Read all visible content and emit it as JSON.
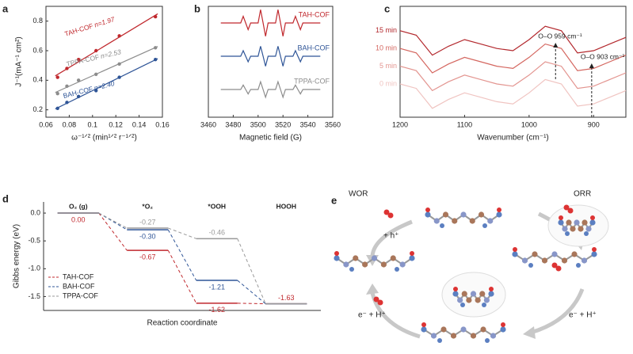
{
  "chart_data": [
    {
      "type": "scatter",
      "label": "a",
      "xlabel": "ω⁻¹ᐟ² (min¹ᐟ² r⁻¹ᐟ²)",
      "ylabel": "J⁻¹(mA⁻¹ cm²)",
      "x": [
        0.07,
        0.078,
        0.088,
        0.103,
        0.123,
        0.154
      ],
      "series": [
        {
          "name": "TAH-COF",
          "annotation": "n=1.97",
          "color": "#c0282d",
          "values": [
            0.42,
            0.48,
            0.54,
            0.6,
            0.7,
            0.83
          ]
        },
        {
          "name": "TPPA-COF",
          "annotation": "n=2.53",
          "color": "#8c8c8c",
          "values": [
            0.31,
            0.36,
            0.4,
            0.44,
            0.51,
            0.62
          ]
        },
        {
          "name": "BAH-COF",
          "annotation": "n=2.40",
          "color": "#2f5597",
          "values": [
            0.21,
            0.25,
            0.29,
            0.33,
            0.42,
            0.54
          ]
        }
      ],
      "xlim": [
        0.06,
        0.16
      ],
      "xticks": [
        0.06,
        0.08,
        0.1,
        0.12,
        0.14,
        0.16
      ],
      "ylim": [
        0.15,
        0.9
      ],
      "yticks": [
        0.2,
        0.4,
        0.6,
        0.8
      ]
    },
    {
      "type": "line",
      "label": "b",
      "xlabel": "Magnetic field (G)",
      "x": [
        3470,
        3472,
        3474,
        3476,
        3478,
        3480,
        3482,
        3484,
        3486,
        3488,
        3490,
        3492,
        3494,
        3496,
        3498,
        3500,
        3502,
        3504,
        3506,
        3508,
        3510,
        3512,
        3514,
        3516,
        3518,
        3520,
        3522,
        3524,
        3526,
        3528,
        3530,
        3532,
        3534,
        3536,
        3538,
        3540,
        3542,
        3544,
        3546,
        3548,
        3550
      ],
      "series": [
        {
          "name": "TAH-COF",
          "color": "#c0282d",
          "values": [
            8.5,
            8.5,
            8.5,
            8.5,
            8.5,
            8.5,
            8.5,
            8.5,
            8.5,
            9.1,
            8.5,
            7.9,
            8.5,
            8.5,
            8.5,
            8.5,
            9.7,
            8.5,
            7.3,
            8.5,
            8.5,
            8.5,
            8.5,
            9.7,
            8.5,
            7.3,
            8.5,
            8.5,
            8.5,
            8.5,
            9.1,
            8.5,
            7.9,
            8.5,
            8.5,
            8.5,
            8.5,
            8.5,
            8.5,
            8.5,
            8.5
          ]
        },
        {
          "name": "BAH-COF",
          "color": "#2f5597",
          "values": [
            5.5,
            5.5,
            5.5,
            5.5,
            5.5,
            5.5,
            5.5,
            5.5,
            5.5,
            6.0,
            5.5,
            5.0,
            5.5,
            5.5,
            5.5,
            5.5,
            6.4,
            5.5,
            4.6,
            5.5,
            5.5,
            5.5,
            5.5,
            6.4,
            5.5,
            4.6,
            5.5,
            5.5,
            5.5,
            5.5,
            6.0,
            5.5,
            5.0,
            5.5,
            5.5,
            5.5,
            5.5,
            5.5,
            5.5,
            5.5,
            5.5
          ]
        },
        {
          "name": "TPPA-COF",
          "color": "#8c8c8c",
          "values": [
            2.5,
            2.5,
            2.5,
            2.5,
            2.5,
            2.5,
            2.5,
            2.5,
            2.5,
            2.9,
            2.5,
            2.1,
            2.5,
            2.5,
            2.5,
            2.5,
            3.2,
            2.5,
            1.8,
            2.5,
            2.5,
            2.5,
            2.5,
            3.2,
            2.5,
            1.8,
            2.5,
            2.5,
            2.5,
            2.5,
            2.9,
            2.5,
            2.1,
            2.5,
            2.5,
            2.5,
            2.5,
            2.5,
            2.5,
            2.5,
            2.5
          ]
        }
      ],
      "xlim": [
        3460,
        3560
      ],
      "xticks": [
        3460,
        3480,
        3500,
        3520,
        3540,
        3560
      ],
      "ylim": [
        0,
        10
      ]
    },
    {
      "type": "line",
      "label": "c",
      "xlabel": "Wavenumber (cm⁻¹)",
      "x": [
        1200,
        1175,
        1150,
        1125,
        1100,
        1075,
        1050,
        1025,
        1000,
        975,
        950,
        925,
        900,
        875,
        850
      ],
      "series": [
        {
          "name": "15 min",
          "color": "#b3282d",
          "values": [
            3.9,
            3.7,
            2.8,
            3.2,
            3.5,
            3.3,
            3.1,
            3.0,
            3.5,
            4.1,
            3.9,
            2.9,
            3.0,
            3.3,
            3.6
          ]
        },
        {
          "name": "10 min",
          "color": "#d4665f",
          "values": [
            3.1,
            2.9,
            2.0,
            2.4,
            2.7,
            2.5,
            2.3,
            2.2,
            2.7,
            3.3,
            3.1,
            2.1,
            2.2,
            2.5,
            2.8
          ]
        },
        {
          "name": "5 min",
          "color": "#e39590",
          "values": [
            2.3,
            2.1,
            1.2,
            1.6,
            1.9,
            1.7,
            1.5,
            1.4,
            1.9,
            2.5,
            2.3,
            1.3,
            1.4,
            1.7,
            2.0
          ]
        },
        {
          "name": "0 min",
          "color": "#f0c4c1",
          "values": [
            1.5,
            1.3,
            0.4,
            0.8,
            1.1,
            0.9,
            0.7,
            0.6,
            1.1,
            1.7,
            1.5,
            0.5,
            0.6,
            0.9,
            1.2
          ]
        }
      ],
      "annotations": [
        {
          "text": "O–O 959 cm⁻¹",
          "x": 959
        },
        {
          "text": "O–O 903 cm⁻¹",
          "x": 903
        }
      ],
      "xlim": [
        1200,
        850
      ],
      "xticks": [
        1200,
        1100,
        1000,
        900
      ],
      "ylim": [
        0,
        5
      ]
    },
    {
      "type": "energy",
      "label": "d",
      "xlabel": "Reaction coordinate",
      "ylabel": "Gibbs energy (eV)",
      "categories": [
        "O₂ (g)",
        "*O₂",
        "*OOH",
        "HOOH"
      ],
      "series": [
        {
          "name": "TAH-COF",
          "color": "#c0282d",
          "values": [
            0,
            -0.67,
            -1.62,
            -1.63
          ],
          "value_labels": [
            "0.00",
            "-0.67",
            "-1.62",
            "-1.63"
          ]
        },
        {
          "name": "BAH-COF",
          "color": "#2f5597",
          "values": [
            0,
            -0.3,
            -1.21,
            -1.63
          ],
          "value_labels": [
            null,
            "-0.30",
            "-1.21",
            null
          ]
        },
        {
          "name": "TPPA-COF",
          "color": "#999999",
          "values": [
            0,
            -0.27,
            -0.46,
            -1.63
          ],
          "value_labels": [
            null,
            "-0.27",
            "-0.46",
            null
          ]
        }
      ],
      "ylim": [
        -1.75,
        0.2
      ],
      "yticks": [
        {
          "value": 0,
          "label": "0.0"
        },
        -0.5,
        {
          "value": -1,
          "label": "-1.0"
        },
        -1.5
      ],
      "legend": "lower left"
    }
  ],
  "diagram": {
    "label": "e",
    "texts": [
      "WOR",
      "ORR",
      "+ h⁺",
      "e⁻ + H⁺",
      "e⁻ + H⁺"
    ]
  }
}
